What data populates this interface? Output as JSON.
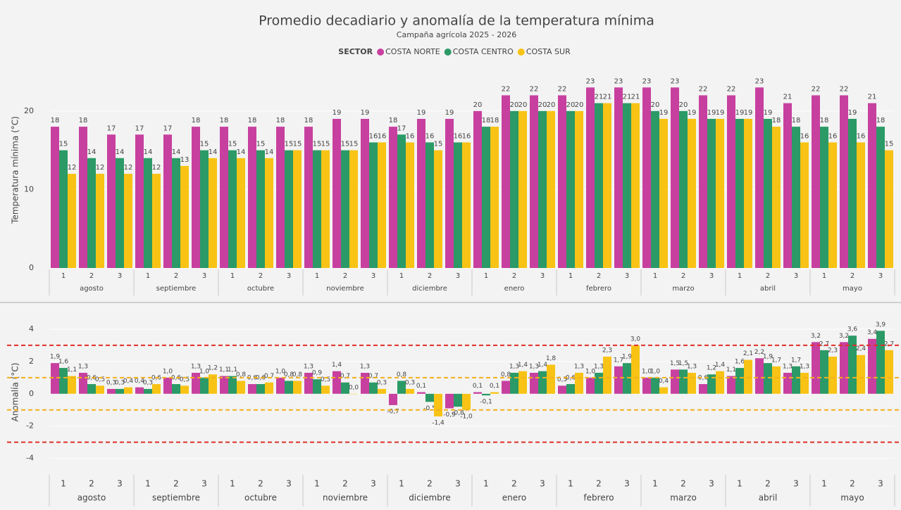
{
  "chart_data": [
    {
      "type": "grouped-bar",
      "title": "Promedio decadiario y anomalía de la temperatura mínima",
      "subtitle": "Campaña agrícola 2025 - 2026",
      "legend_title": "SECTOR",
      "y_label": "Temperatura mínima (°C)",
      "categories": [
        "1",
        "2",
        "3",
        "1",
        "2",
        "3",
        "1",
        "2",
        "3",
        "1",
        "2",
        "3",
        "1",
        "2",
        "3",
        "1",
        "2",
        "3",
        "1",
        "2",
        "3",
        "1",
        "2",
        "3",
        "1",
        "2",
        "3",
        "1",
        "2",
        "3"
      ],
      "months": [
        "agosto",
        "septiembre",
        "octubre",
        "noviembre",
        "diciembre",
        "enero",
        "febrero",
        "marzo",
        "abril",
        "mayo"
      ],
      "ylim": [
        0,
        25
      ],
      "yticks": [
        0,
        10,
        20
      ],
      "grid": true,
      "series": [
        {
          "name": "COSTA NORTE",
          "color": "#c7409f",
          "values": [
            18,
            18,
            17,
            17,
            17,
            18,
            18,
            18,
            18,
            18,
            19,
            19,
            18,
            19,
            19,
            20,
            22,
            22,
            22,
            23,
            23,
            23,
            23,
            22,
            22,
            23,
            21,
            22,
            22,
            21
          ]
        },
        {
          "name": "COSTA CENTRO",
          "color": "#2b9a66",
          "values": [
            15,
            14,
            14,
            14,
            14,
            15,
            15,
            15,
            15,
            15,
            15,
            16,
            17,
            16,
            16,
            18,
            20,
            20,
            20,
            21,
            21,
            20,
            20,
            19,
            19,
            19,
            18,
            18,
            19,
            18
          ]
        },
        {
          "name": "COSTA SUR",
          "color": "#f8c315",
          "values": [
            12,
            12,
            12,
            12,
            13,
            14,
            14,
            14,
            15,
            15,
            15,
            16,
            16,
            15,
            16,
            18,
            20,
            20,
            20,
            21,
            21,
            19,
            19,
            19,
            19,
            18,
            16,
            16,
            16,
            15
          ]
        }
      ]
    },
    {
      "type": "grouped-bar",
      "y_label": "Anomalía (°C)",
      "categories": [
        "1",
        "2",
        "3",
        "1",
        "2",
        "3",
        "1",
        "2",
        "3",
        "1",
        "2",
        "3",
        "1",
        "2",
        "3",
        "1",
        "2",
        "3",
        "1",
        "2",
        "3",
        "1",
        "2",
        "3",
        "1",
        "2",
        "3",
        "1",
        "2",
        "3"
      ],
      "months": [
        "agosto",
        "septiembre",
        "octubre",
        "noviembre",
        "diciembre",
        "enero",
        "febrero",
        "marzo",
        "abril",
        "mayo"
      ],
      "ylim": [
        -4.8,
        5
      ],
      "yticks": [
        -4,
        -2,
        0,
        2,
        4
      ],
      "grid": true,
      "reference_lines": [
        {
          "value": 3,
          "color": "#e0302a"
        },
        {
          "value": -3,
          "color": "#e0302a"
        },
        {
          "value": 1,
          "color": "#f2b01e"
        },
        {
          "value": -1,
          "color": "#f2b01e"
        }
      ],
      "series": [
        {
          "name": "COSTA NORTE",
          "color": "#c7409f",
          "values": [
            1.9,
            1.3,
            0.3,
            0.4,
            1.0,
            1.3,
            1.1,
            0.6,
            1.0,
            1.3,
            1.4,
            1.3,
            -0.7,
            0.1,
            -0.9,
            0.1,
            0.8,
            1.3,
            0.5,
            1.0,
            1.7,
            1.0,
            1.5,
            0.6,
            1.1,
            2.2,
            1.3,
            3.2,
            3.2,
            3.4
          ],
          "value_labels": [
            "1,9",
            "1,3",
            "0,3",
            "0,4",
            "1,0",
            "1,3",
            "1,1",
            "0,6",
            "1,0",
            "1,3",
            "1,4",
            "1,3",
            "-0,7",
            "0,1",
            "-0,9",
            "0,1",
            "0,8",
            "1,3",
            "0,5",
            "1,0",
            "1,7",
            "1,0",
            "1,5",
            "0,6",
            "1,1",
            "2,2",
            "1,3",
            "3,2",
            "3,2",
            "3,4"
          ]
        },
        {
          "name": "COSTA CENTRO",
          "color": "#2b9a66",
          "values": [
            1.6,
            0.6,
            0.3,
            0.3,
            0.6,
            1.0,
            1.1,
            0.6,
            0.8,
            0.9,
            0.7,
            0.7,
            0.8,
            -0.5,
            -0.8,
            -0.1,
            1.3,
            1.4,
            0.6,
            1.3,
            1.9,
            1.0,
            1.5,
            1.2,
            1.6,
            1.9,
            1.7,
            2.7,
            3.6,
            3.9
          ],
          "value_labels": [
            "1,6",
            "0,6",
            "0,3",
            "0,3",
            "0,6",
            "1,0",
            "1,1",
            "0,6",
            "0,8",
            "0,9",
            "0,7",
            "0,7",
            "0,8",
            "-0,5",
            "-0,8",
            "-0,1",
            "1,3",
            "1,4",
            "0,6",
            "1,3",
            "1,9",
            "1,0",
            "1,5",
            "1,2",
            "1,6",
            "1,9",
            "1,7",
            "2,7",
            "3,6",
            "3,9"
          ]
        },
        {
          "name": "COSTA SUR",
          "color": "#f8c315",
          "values": [
            1.1,
            0.5,
            0.4,
            0.6,
            0.5,
            1.2,
            0.8,
            0.7,
            0.8,
            0.5,
            0.0,
            0.3,
            0.3,
            -1.4,
            -1.0,
            0.1,
            1.4,
            1.8,
            1.3,
            2.3,
            3.0,
            0.4,
            1.3,
            1.4,
            2.1,
            1.7,
            1.3,
            2.3,
            2.4,
            2.7
          ],
          "value_labels": [
            "1,1",
            "0,5",
            "0,4",
            "0,6",
            "0,5",
            "1,2",
            "0,8",
            "0,7",
            "0,8",
            "0,5",
            "0,0",
            "0,3",
            "0,3",
            "-1,4",
            "-1,0",
            "0,1",
            "1,4",
            "1,8",
            "1,3",
            "2,3",
            "3,0",
            "0,4",
            "1,3",
            "1,4",
            "2,1",
            "1,7",
            "1,3",
            "2,3",
            "2,4",
            "2,7"
          ]
        }
      ]
    }
  ]
}
